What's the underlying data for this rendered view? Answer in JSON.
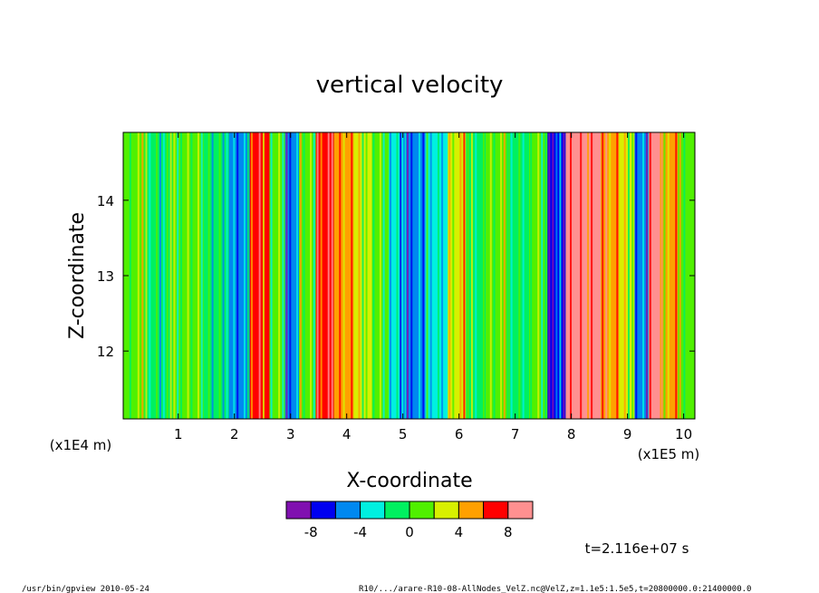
{
  "chart_data": {
    "type": "heatmap",
    "title": "vertical velocity",
    "xlabel": "X-coordinate",
    "ylabel": "Z-coordinate",
    "x_scale_label": "(x1E5 m)",
    "y_scale_label": "(x1E4 m)",
    "xlim": [
      0.02,
      10.2
    ],
    "ylim": [
      11.1,
      14.9
    ],
    "x_ticks": [
      "1",
      "2",
      "3",
      "4",
      "5",
      "6",
      "7",
      "8",
      "9",
      "10"
    ],
    "y_ticks": [
      "12",
      "13",
      "14"
    ],
    "colorbar": {
      "tick_labels": [
        "-8",
        "-4",
        "0",
        "4",
        "8"
      ],
      "tick_values": [
        -8,
        -4,
        0,
        4,
        8
      ],
      "range": [
        -10,
        10
      ],
      "colors": [
        "#8010b0",
        "#0000f0",
        "#0088f0",
        "#00f0e0",
        "#00f060",
        "#50f000",
        "#d8f000",
        "#ffa000",
        "#ff0000",
        "#ff9090"
      ]
    },
    "columns": [
      {
        "x": 0.2,
        "v": 1.5
      },
      {
        "x": 0.6,
        "v": -1.0
      },
      {
        "x": 1.2,
        "v": 0.5
      },
      {
        "x": 1.7,
        "v": -2.0
      },
      {
        "x": 2.1,
        "v": -4.5
      },
      {
        "x": 2.45,
        "v": 6.0
      },
      {
        "x": 2.8,
        "v": 0.0
      },
      {
        "x": 3.0,
        "v": -5.5
      },
      {
        "x": 3.3,
        "v": 1.0
      },
      {
        "x": 3.6,
        "v": 7.5
      },
      {
        "x": 3.95,
        "v": 4.5
      },
      {
        "x": 4.3,
        "v": 2.0
      },
      {
        "x": 4.6,
        "v": 0.0
      },
      {
        "x": 4.9,
        "v": -3.0
      },
      {
        "x": 5.2,
        "v": -5.5
      },
      {
        "x": 5.6,
        "v": -2.5
      },
      {
        "x": 6.0,
        "v": 3.5
      },
      {
        "x": 6.25,
        "v": -1.0
      },
      {
        "x": 6.7,
        "v": 1.5
      },
      {
        "x": 7.1,
        "v": -1.5
      },
      {
        "x": 7.4,
        "v": 1.0
      },
      {
        "x": 7.75,
        "v": -7.0
      },
      {
        "x": 8.05,
        "v": 9.5
      },
      {
        "x": 8.35,
        "v": 8.5
      },
      {
        "x": 8.7,
        "v": 5.0
      },
      {
        "x": 9.0,
        "v": 2.0
      },
      {
        "x": 9.25,
        "v": -6.0
      },
      {
        "x": 9.5,
        "v": 8.5
      },
      {
        "x": 9.75,
        "v": 4.5
      },
      {
        "x": 10.05,
        "v": 1.0
      }
    ]
  },
  "time_label": "t=2.116e+07 s",
  "footer": {
    "left": "/usr/bin/gpview  2010-05-24",
    "right": "R10/.../arare-R10-08-AllNodes_VelZ.nc@VelZ,z=1.1e5:1.5e5,t=20800000.0:21400000.0"
  }
}
